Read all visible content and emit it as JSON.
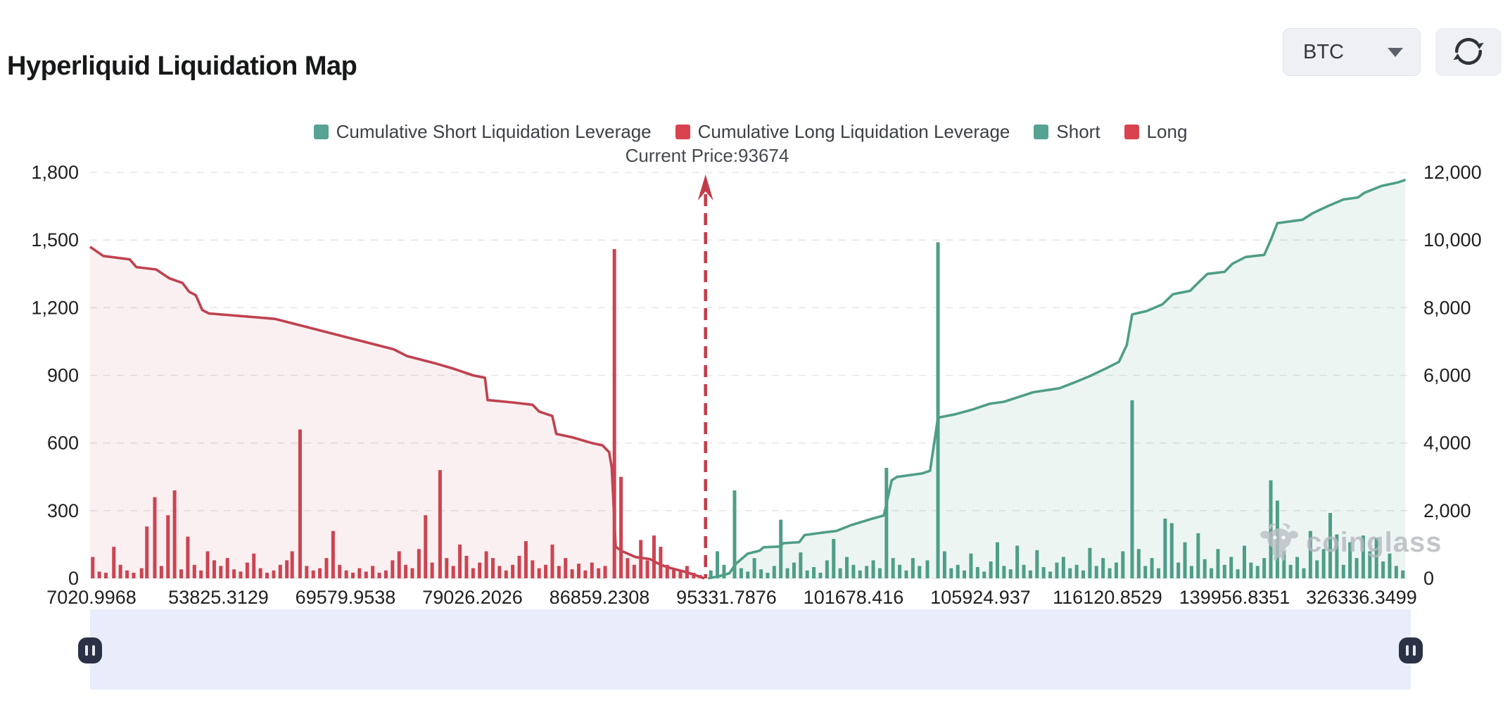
{
  "page": {
    "title": "Hyperliquid Liquidation Map"
  },
  "controls": {
    "symbol_select": {
      "value": "BTC"
    },
    "refresh_button": {
      "icon": "refresh-icon"
    }
  },
  "chart_data": {
    "type": "mixed-bar-line",
    "title": "Hyperliquid Liquidation Map",
    "current_price": 93674,
    "current_price_label": "Current Price:93674",
    "legend_position": "top-center",
    "grid": true,
    "watermark": "coinglass",
    "colors": {
      "short_line": "#4f9e87",
      "short_fill": "rgba(79,158,135,0.10)",
      "long_line": "#c0414f",
      "long_fill": "rgba(192,65,79,0.08)",
      "short_bar": "#4f9e87",
      "long_bar": "#cc4452",
      "price_line": "#c23b48",
      "grid_line": "#e7e7e7",
      "axis_text": "#1f1f1f"
    },
    "legend": [
      {
        "label": "Cumulative Short Liquidation Leverage",
        "color": "#57a392"
      },
      {
        "label": "Cumulative Long Liquidation Leverage",
        "color": "#d8434f"
      },
      {
        "label": "Short",
        "color": "#57a392"
      },
      {
        "label": "Long",
        "color": "#d8434f"
      }
    ],
    "x_tick_labels": [
      "7020.9968",
      "53825.3129",
      "69579.9538",
      "79026.2026",
      "86859.2308",
      "95331.7876",
      "101678.416",
      "105924.937",
      "116120.8529",
      "139956.8351",
      "326336.3499"
    ],
    "y_left": {
      "min": 0,
      "max": 1800,
      "ticks": [
        "0",
        "300",
        "600",
        "900",
        "1,200",
        "1,500",
        "1,800"
      ]
    },
    "y_right": {
      "min": 0,
      "max": 12000,
      "ticks": [
        "0",
        "2,000",
        "4,000",
        "6,000",
        "8,000",
        "10,000",
        "12,000"
      ]
    },
    "current_price_x_pct": 46.6,
    "series": [
      {
        "name": "Cumulative Long Liquidation Leverage",
        "type": "line",
        "axis": "right",
        "points": [
          [
            0,
            9800
          ],
          [
            1,
            9530
          ],
          [
            3,
            9430
          ],
          [
            3.5,
            9200
          ],
          [
            5,
            9130
          ],
          [
            6,
            8870
          ],
          [
            7,
            8730
          ],
          [
            7.5,
            8470
          ],
          [
            8,
            8370
          ],
          [
            8.5,
            7930
          ],
          [
            9,
            7830
          ],
          [
            14,
            7670
          ],
          [
            17,
            7370
          ],
          [
            20,
            7070
          ],
          [
            23,
            6770
          ],
          [
            24,
            6570
          ],
          [
            26,
            6370
          ],
          [
            27.5,
            6200
          ],
          [
            29,
            6000
          ],
          [
            29.9,
            5930
          ],
          [
            30.1,
            5270
          ],
          [
            32,
            5200
          ],
          [
            33.5,
            5130
          ],
          [
            34,
            4930
          ],
          [
            35,
            4800
          ],
          [
            35.3,
            4270
          ],
          [
            36.5,
            4170
          ],
          [
            38,
            4000
          ],
          [
            38.8,
            3930
          ],
          [
            39.3,
            3730
          ],
          [
            39.5,
            3270
          ],
          [
            39.8,
            930
          ],
          [
            40.3,
            800
          ],
          [
            41.3,
            630
          ],
          [
            42.4,
            570
          ],
          [
            43.2,
            400
          ],
          [
            44,
            300
          ],
          [
            45,
            200
          ],
          [
            45.8,
            100
          ],
          [
            46.5,
            0
          ]
        ]
      },
      {
        "name": "Cumulative Short Liquidation Leverage",
        "type": "line",
        "axis": "right",
        "points": [
          [
            46.8,
            0
          ],
          [
            47.6,
            60
          ],
          [
            48.4,
            150
          ],
          [
            48.9,
            430
          ],
          [
            49.8,
            730
          ],
          [
            50.7,
            820
          ],
          [
            51,
            920
          ],
          [
            52.2,
            940
          ],
          [
            52.5,
            1040
          ],
          [
            53.7,
            1070
          ],
          [
            54.1,
            1280
          ],
          [
            55.4,
            1350
          ],
          [
            56.5,
            1400
          ],
          [
            57.6,
            1570
          ],
          [
            59.1,
            1750
          ],
          [
            60.1,
            1860
          ],
          [
            60.7,
            2900
          ],
          [
            61.1,
            3000
          ],
          [
            63,
            3100
          ],
          [
            63.6,
            3180
          ],
          [
            64.2,
            4750
          ],
          [
            65.5,
            4850
          ],
          [
            66.9,
            5000
          ],
          [
            68.1,
            5160
          ],
          [
            69.2,
            5220
          ],
          [
            70.3,
            5360
          ],
          [
            71.4,
            5500
          ],
          [
            73.4,
            5620
          ],
          [
            74.6,
            5800
          ],
          [
            75.7,
            5980
          ],
          [
            76.8,
            6180
          ],
          [
            77.9,
            6400
          ],
          [
            78.5,
            6900
          ],
          [
            78.9,
            7800
          ],
          [
            80,
            7900
          ],
          [
            81.2,
            8100
          ],
          [
            82,
            8400
          ],
          [
            83.3,
            8500
          ],
          [
            83.8,
            8700
          ],
          [
            84.6,
            9000
          ],
          [
            85.9,
            9060
          ],
          [
            86.5,
            9300
          ],
          [
            87.5,
            9500
          ],
          [
            88.9,
            9560
          ],
          [
            89.4,
            10000
          ],
          [
            89.9,
            10500
          ],
          [
            91.8,
            10600
          ],
          [
            92.6,
            10800
          ],
          [
            93.7,
            11000
          ],
          [
            94.9,
            11200
          ],
          [
            96,
            11260
          ],
          [
            96.5,
            11400
          ],
          [
            97.8,
            11600
          ],
          [
            99,
            11700
          ],
          [
            99.6,
            11780
          ]
        ]
      },
      {
        "name": "Long",
        "type": "bar",
        "axis": "left",
        "points": [
          [
            0.2,
            95
          ],
          [
            0.7,
            30
          ],
          [
            1.2,
            25
          ],
          [
            1.8,
            140
          ],
          [
            2.3,
            60
          ],
          [
            2.8,
            35
          ],
          [
            3.3,
            25
          ],
          [
            3.9,
            45
          ],
          [
            4.3,
            230
          ],
          [
            4.9,
            360
          ],
          [
            5.4,
            55
          ],
          [
            5.9,
            280
          ],
          [
            6.4,
            390
          ],
          [
            6.9,
            40
          ],
          [
            7.4,
            185
          ],
          [
            7.9,
            60
          ],
          [
            8.4,
            35
          ],
          [
            8.9,
            120
          ],
          [
            9.4,
            80
          ],
          [
            9.9,
            55
          ],
          [
            10.4,
            90
          ],
          [
            10.9,
            40
          ],
          [
            11.4,
            30
          ],
          [
            11.9,
            70
          ],
          [
            12.4,
            110
          ],
          [
            12.9,
            45
          ],
          [
            13.4,
            25
          ],
          [
            13.9,
            35
          ],
          [
            14.4,
            60
          ],
          [
            14.9,
            80
          ],
          [
            15.3,
            120
          ],
          [
            15.9,
            660
          ],
          [
            16.4,
            55
          ],
          [
            16.9,
            35
          ],
          [
            17.4,
            45
          ],
          [
            17.9,
            90
          ],
          [
            18.4,
            210
          ],
          [
            18.9,
            60
          ],
          [
            19.4,
            35
          ],
          [
            19.9,
            25
          ],
          [
            20.4,
            45
          ],
          [
            20.9,
            30
          ],
          [
            21.4,
            55
          ],
          [
            21.9,
            25
          ],
          [
            22.4,
            35
          ],
          [
            22.9,
            80
          ],
          [
            23.4,
            120
          ],
          [
            23.9,
            60
          ],
          [
            24.4,
            45
          ],
          [
            24.9,
            130
          ],
          [
            25.4,
            280
          ],
          [
            25.9,
            70
          ],
          [
            26.5,
            480
          ],
          [
            27,
            90
          ],
          [
            27.5,
            55
          ],
          [
            28,
            150
          ],
          [
            28.5,
            100
          ],
          [
            29,
            45
          ],
          [
            29.5,
            70
          ],
          [
            30,
            120
          ],
          [
            30.5,
            90
          ],
          [
            31,
            55
          ],
          [
            31.5,
            35
          ],
          [
            32,
            60
          ],
          [
            32.5,
            100
          ],
          [
            33,
            165
          ],
          [
            33.5,
            80
          ],
          [
            34,
            45
          ],
          [
            34.5,
            60
          ],
          [
            35,
            150
          ],
          [
            35.5,
            55
          ],
          [
            36,
            90
          ],
          [
            36.5,
            40
          ],
          [
            37,
            65
          ],
          [
            37.5,
            35
          ],
          [
            38,
            70
          ],
          [
            38.5,
            45
          ],
          [
            39,
            55
          ],
          [
            39.7,
            1460
          ],
          [
            40.2,
            450
          ],
          [
            40.7,
            90
          ],
          [
            41.2,
            60
          ],
          [
            41.7,
            170
          ],
          [
            42.2,
            80
          ],
          [
            42.7,
            190
          ],
          [
            43.2,
            140
          ],
          [
            43.7,
            60
          ],
          [
            44.2,
            40
          ],
          [
            44.7,
            30
          ],
          [
            45.2,
            55
          ],
          [
            45.7,
            25
          ],
          [
            46.2,
            15
          ]
        ]
      },
      {
        "name": "Short",
        "type": "bar",
        "axis": "left",
        "points": [
          [
            47,
            35
          ],
          [
            47.5,
            120
          ],
          [
            48,
            60
          ],
          [
            48.8,
            390
          ],
          [
            49.3,
            45
          ],
          [
            49.8,
            30
          ],
          [
            50.3,
            90
          ],
          [
            50.8,
            40
          ],
          [
            51.3,
            25
          ],
          [
            51.8,
            55
          ],
          [
            52.3,
            260
          ],
          [
            52.8,
            45
          ],
          [
            53.3,
            70
          ],
          [
            53.8,
            115
          ],
          [
            54.3,
            35
          ],
          [
            54.8,
            50
          ],
          [
            55.3,
            25
          ],
          [
            55.8,
            80
          ],
          [
            56.3,
            175
          ],
          [
            56.8,
            45
          ],
          [
            57.3,
            95
          ],
          [
            57.8,
            60
          ],
          [
            58.3,
            35
          ],
          [
            58.8,
            55
          ],
          [
            59.3,
            80
          ],
          [
            59.8,
            45
          ],
          [
            60.3,
            490
          ],
          [
            60.8,
            90
          ],
          [
            61.3,
            60
          ],
          [
            61.8,
            35
          ],
          [
            62.3,
            90
          ],
          [
            62.8,
            55
          ],
          [
            63.4,
            80
          ],
          [
            64.2,
            1490
          ],
          [
            64.7,
            120
          ],
          [
            65.2,
            45
          ],
          [
            65.7,
            60
          ],
          [
            66.2,
            35
          ],
          [
            66.7,
            110
          ],
          [
            67.2,
            50
          ],
          [
            67.7,
            30
          ],
          [
            68.2,
            75
          ],
          [
            68.7,
            160
          ],
          [
            69.2,
            55
          ],
          [
            69.7,
            40
          ],
          [
            70.2,
            145
          ],
          [
            70.7,
            60
          ],
          [
            71.2,
            35
          ],
          [
            71.7,
            125
          ],
          [
            72.2,
            50
          ],
          [
            72.7,
            30
          ],
          [
            73.2,
            70
          ],
          [
            73.7,
            95
          ],
          [
            74.2,
            45
          ],
          [
            74.7,
            60
          ],
          [
            75.2,
            35
          ],
          [
            75.7,
            135
          ],
          [
            76.2,
            55
          ],
          [
            76.7,
            90
          ],
          [
            77.2,
            45
          ],
          [
            77.7,
            70
          ],
          [
            78.2,
            120
          ],
          [
            78.9,
            790
          ],
          [
            79.4,
            130
          ],
          [
            79.9,
            55
          ],
          [
            80.4,
            90
          ],
          [
            80.9,
            45
          ],
          [
            81.4,
            265
          ],
          [
            81.9,
            245
          ],
          [
            82.4,
            70
          ],
          [
            82.9,
            160
          ],
          [
            83.4,
            55
          ],
          [
            83.9,
            200
          ],
          [
            84.4,
            85
          ],
          [
            84.9,
            45
          ],
          [
            85.4,
            130
          ],
          [
            85.9,
            60
          ],
          [
            86.4,
            95
          ],
          [
            86.9,
            40
          ],
          [
            87.4,
            145
          ],
          [
            87.9,
            70
          ],
          [
            88.4,
            55
          ],
          [
            88.9,
            90
          ],
          [
            89.4,
            435
          ],
          [
            89.9,
            345
          ],
          [
            90.4,
            120
          ],
          [
            90.9,
            60
          ],
          [
            91.4,
            95
          ],
          [
            91.9,
            45
          ],
          [
            92.4,
            210
          ],
          [
            92.9,
            80
          ],
          [
            93.4,
            130
          ],
          [
            93.9,
            290
          ],
          [
            94.4,
            195
          ],
          [
            94.9,
            60
          ],
          [
            95.4,
            160
          ],
          [
            95.9,
            90
          ],
          [
            96.4,
            190
          ],
          [
            96.9,
            120
          ],
          [
            97.4,
            180
          ],
          [
            97.9,
            75
          ],
          [
            98.4,
            110
          ],
          [
            98.9,
            55
          ],
          [
            99.4,
            35
          ]
        ]
      }
    ]
  },
  "slider": {
    "track_color": "#e9ecfa",
    "handle_color": "#2b3245",
    "left_handle": "pause-handle",
    "right_handle": "pause-handle"
  }
}
